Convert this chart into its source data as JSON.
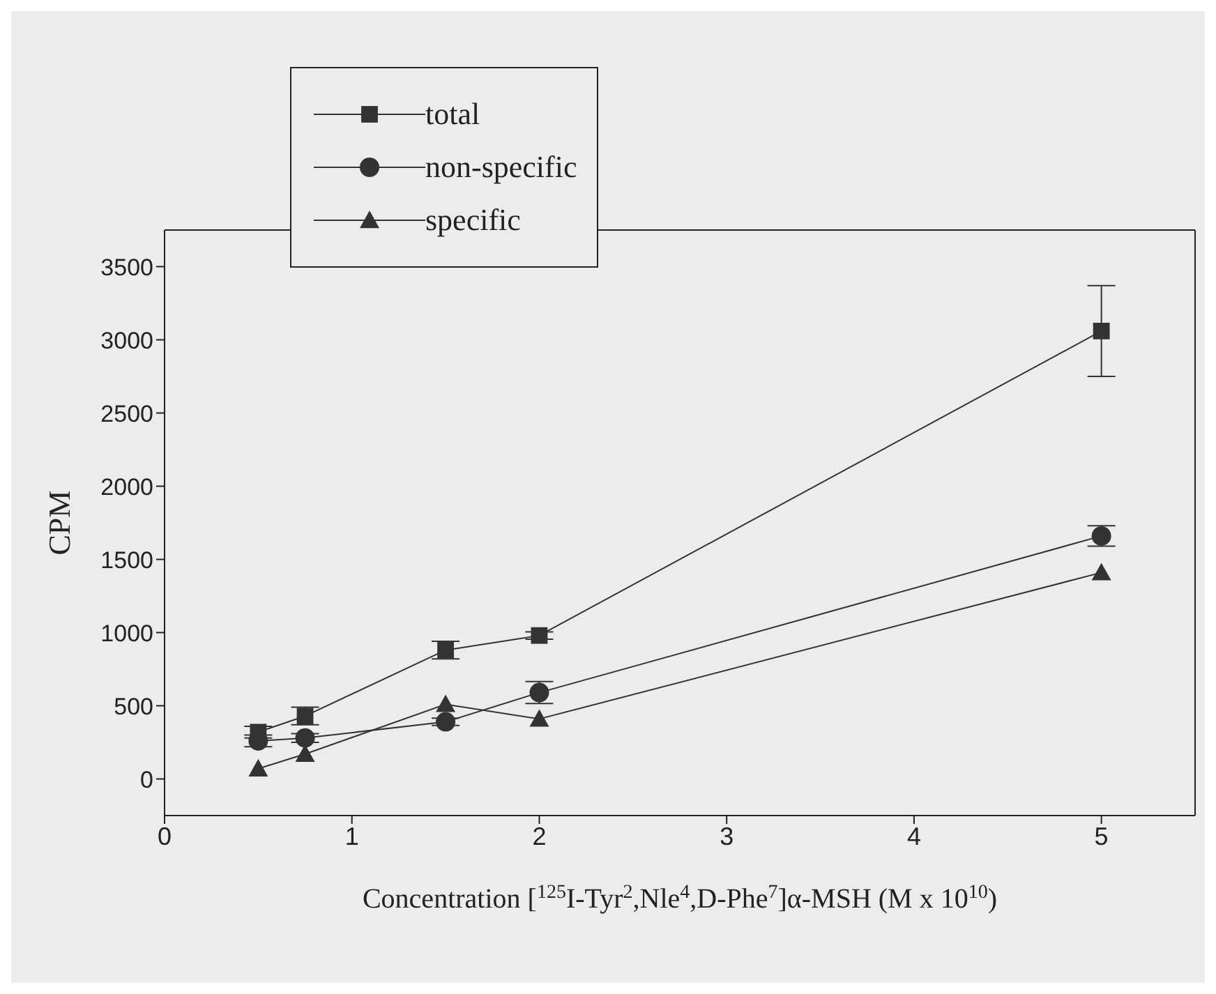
{
  "chart_data": {
    "type": "line",
    "xlabel": "Concentration [$^{125}$I-Tyr$^{2}$,Nle$^{4}$,D-Phe$^{7}$]α-MSH (M x 10$^{10}$)",
    "ylabel": "CPM",
    "x": [
      0.5,
      0.75,
      1.5,
      2,
      5
    ],
    "series": [
      {
        "name": "total",
        "color": "#333333",
        "marker": "square",
        "values": [
          320,
          430,
          880,
          980,
          3060
        ],
        "errors": [
          40,
          60,
          60,
          25,
          310
        ]
      },
      {
        "name": "non-specific",
        "color": "#333333",
        "marker": "circle",
        "values": [
          260,
          280,
          390,
          590,
          1660
        ],
        "errors": [
          40,
          30,
          25,
          75,
          70
        ]
      },
      {
        "name": "specific",
        "color": "#333333",
        "marker": "triangle",
        "values": [
          70,
          170,
          510,
          410,
          1410
        ]
      }
    ],
    "xlim": [
      0,
      5.5
    ],
    "xticks": [
      0,
      1,
      2,
      3,
      4,
      5
    ],
    "ylim": [
      -250,
      3750
    ],
    "yticks": [
      0,
      500,
      1000,
      1500,
      2000,
      2500,
      3000,
      3500
    ],
    "legend": "top left",
    "grid": false
  }
}
